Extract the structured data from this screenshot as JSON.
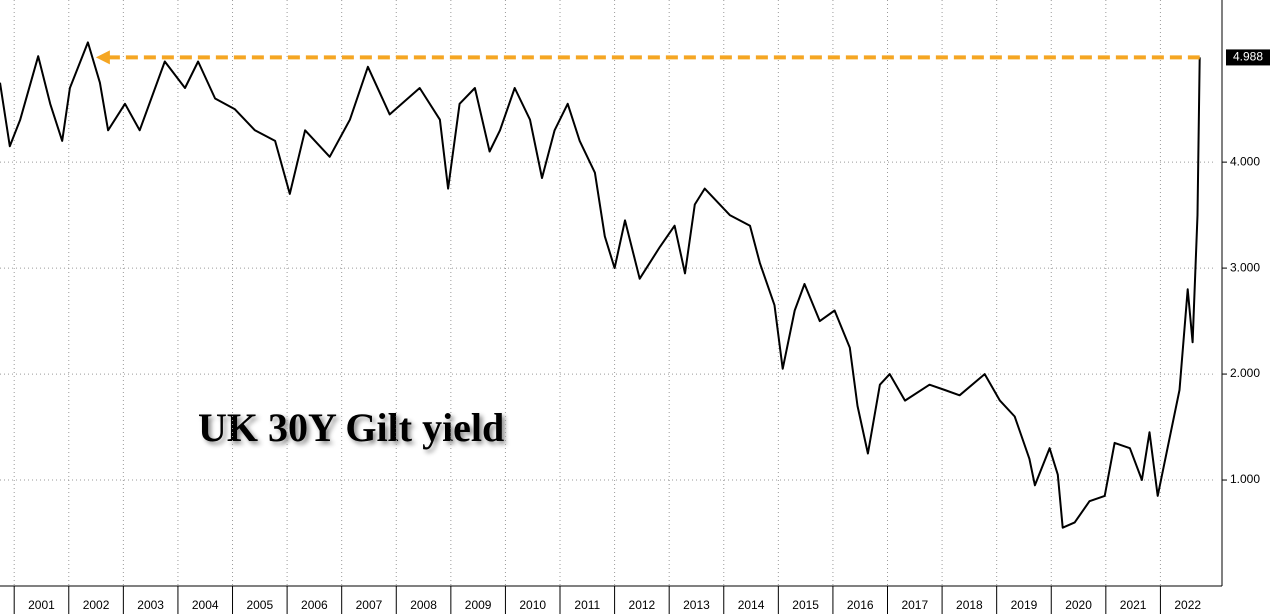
{
  "chart_data": {
    "type": "line",
    "annotation": "UK 30Y Gilt yield",
    "x": [
      2000.74,
      2000.92,
      2001.11,
      2001.44,
      2001.66,
      2001.88,
      2002.02,
      2002.35,
      2002.57,
      2002.72,
      2003.03,
      2003.3,
      2003.76,
      2004.13,
      2004.37,
      2004.68,
      2005.04,
      2005.41,
      2005.78,
      2006.05,
      2006.33,
      2006.78,
      2007.15,
      2007.48,
      2007.88,
      2008.43,
      2008.8,
      2008.95,
      2009.16,
      2009.44,
      2009.71,
      2009.9,
      2010.17,
      2010.45,
      2010.67,
      2010.9,
      2011.14,
      2011.36,
      2011.64,
      2011.82,
      2012.0,
      2012.19,
      2012.46,
      2012.83,
      2013.1,
      2013.29,
      2013.47,
      2013.65,
      2014.11,
      2014.48,
      2014.66,
      2014.93,
      2015.08,
      2015.3,
      2015.48,
      2015.76,
      2016.03,
      2016.31,
      2016.45,
      2016.64,
      2016.86,
      2017.04,
      2017.32,
      2017.77,
      2018.05,
      2018.32,
      2018.78,
      2019.06,
      2019.33,
      2019.6,
      2019.7,
      2019.97,
      2020.12,
      2020.21,
      2020.43,
      2020.7,
      2020.98,
      2021.16,
      2021.44,
      2021.66,
      2021.8,
      2021.95,
      2022.17,
      2022.35,
      2022.5,
      2022.59,
      2022.68,
      2022.72
    ],
    "series": [
      {
        "name": "UK 30Y Gilt",
        "color": "#000000",
        "values": [
          4.75,
          4.15,
          4.4,
          5.0,
          4.55,
          4.2,
          4.7,
          5.13,
          4.75,
          4.3,
          4.55,
          4.3,
          4.95,
          4.7,
          4.95,
          4.6,
          4.5,
          4.3,
          4.2,
          3.7,
          4.3,
          4.05,
          4.4,
          4.9,
          4.45,
          4.7,
          4.4,
          3.75,
          4.55,
          4.7,
          4.1,
          4.3,
          4.7,
          4.4,
          3.85,
          4.3,
          4.55,
          4.2,
          3.9,
          3.3,
          3.0,
          3.45,
          2.9,
          3.2,
          3.4,
          2.95,
          3.6,
          3.75,
          3.5,
          3.4,
          3.05,
          2.65,
          2.05,
          2.6,
          2.85,
          2.5,
          2.6,
          2.25,
          1.7,
          1.25,
          1.9,
          2.0,
          1.75,
          1.9,
          1.85,
          1.8,
          2.0,
          1.75,
          1.6,
          1.2,
          0.95,
          1.3,
          1.05,
          0.55,
          0.6,
          0.8,
          0.85,
          1.35,
          1.3,
          1.0,
          1.45,
          0.85,
          1.4,
          1.85,
          2.8,
          2.3,
          3.5,
          4.988
        ]
      }
    ],
    "reference_color": "#f5a623",
    "xlim": [
      2000.74,
      2023.0
    ],
    "xticks": [
      2001,
      2002,
      2003,
      2004,
      2005,
      2006,
      2007,
      2008,
      2009,
      2010,
      2011,
      2012,
      2013,
      2014,
      2015,
      2016,
      2017,
      2018,
      2019,
      2020,
      2021,
      2022
    ],
    "ylim": [
      0,
      5.53
    ],
    "yticks": [
      {
        "value": 1,
        "label": "1.000"
      },
      {
        "value": 2,
        "label": "2.000"
      },
      {
        "value": 3,
        "label": "3.000"
      },
      {
        "value": 4,
        "label": "4.000"
      }
    ],
    "grid": true
  }
}
